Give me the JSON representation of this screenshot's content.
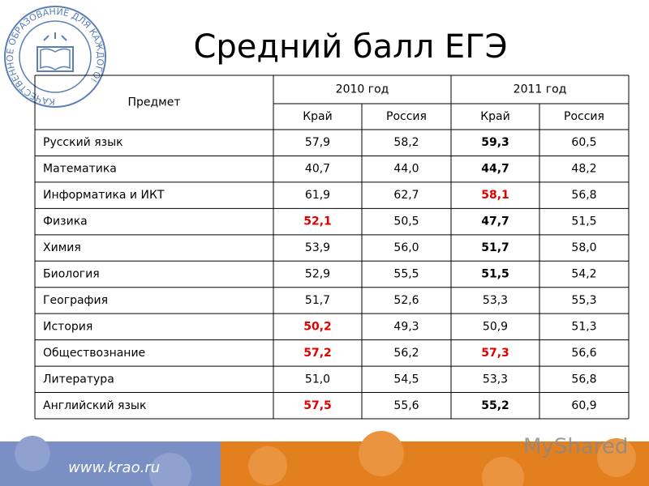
{
  "logo": {
    "text": "КАЧЕСТВЕННОЕ ОБРАЗОВАНИЕ ДЛЯ КАЖДОГО!"
  },
  "header": {
    "title": "Средний балл ЕГЭ"
  },
  "table": {
    "subject_header": "Предмет",
    "year_headers": [
      "2010 год",
      "2011 год"
    ],
    "sub_headers": [
      "Край",
      "Россия",
      "Край",
      "Россия"
    ],
    "rows": [
      {
        "subject": "Русский язык",
        "cells": [
          "57,9",
          "58,2",
          {
            "text": "59,3",
            "bold": true
          },
          "60,5"
        ]
      },
      {
        "subject": "Математика",
        "cells": [
          "40,7",
          "44,0",
          {
            "text": "44,7",
            "bold": true
          },
          "48,2"
        ]
      },
      {
        "subject": "Информатика и ИКТ",
        "cells": [
          "61,9",
          "62,7",
          {
            "text": "58,1",
            "bold": true,
            "color": "#e00000"
          },
          "56,8"
        ]
      },
      {
        "subject": "Физика",
        "cells": [
          {
            "text": "52,1",
            "bold": true,
            "color": "#e00000"
          },
          "50,5",
          {
            "text": "47,7",
            "bold": true
          },
          "51,5"
        ]
      },
      {
        "subject": "Химия",
        "cells": [
          "53,9",
          "56,0",
          {
            "text": "51,7",
            "bold": true
          },
          "58,0"
        ]
      },
      {
        "subject": "Биология",
        "cells": [
          "52,9",
          "55,5",
          {
            "text": "51,5",
            "bold": true
          },
          "54,2"
        ]
      },
      {
        "subject": "География",
        "cells": [
          "51,7",
          "52,6",
          "53,3",
          "55,3"
        ]
      },
      {
        "subject": "История",
        "cells": [
          {
            "text": "50,2",
            "bold": true,
            "color": "#e00000"
          },
          "49,3",
          "50,9",
          "51,3"
        ]
      },
      {
        "subject": "Обществознание",
        "cells": [
          {
            "text": "57,2",
            "bold": true,
            "color": "#e00000"
          },
          "56,2",
          {
            "text": "57,3",
            "bold": true,
            "color": "#e00000"
          },
          "56,6"
        ]
      },
      {
        "subject": "Литература",
        "cells": [
          "51,0",
          "54,5",
          "53,3",
          "56,8"
        ]
      },
      {
        "subject": "Английский язык",
        "cells": [
          {
            "text": "57,5",
            "bold": true,
            "color": "#e00000"
          },
          "55,6",
          {
            "text": "55,2",
            "bold": true
          },
          "60,9"
        ]
      }
    ]
  },
  "footer": {
    "url": "www.krao.ru",
    "watermark": "MyShared"
  }
}
